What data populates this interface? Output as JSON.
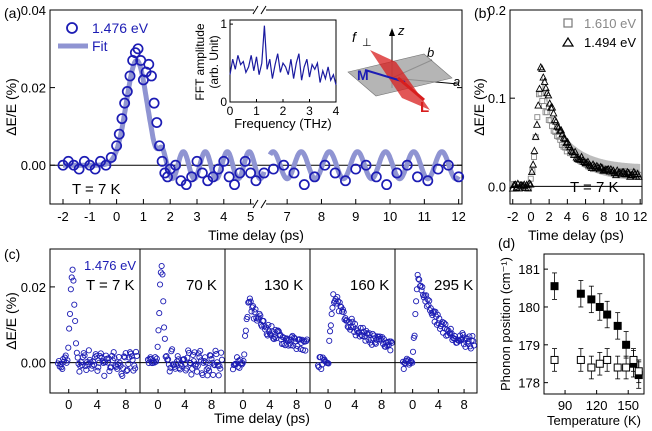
{
  "colors": {
    "data_blue": "#1c1cb4",
    "fit": "#8f94d2",
    "gray_fill": "#9a9a9a",
    "inset_line": "#1a1aa0",
    "red": "#d81e1e",
    "dark": "#000000"
  },
  "chart_data": [
    {
      "panel": "(a)",
      "type": "scatter",
      "ylabel": "ΔE/E (%)",
      "xlabel": "Time delay (ps)",
      "xticks": [
        -2,
        -1,
        0,
        1,
        2,
        3,
        4,
        5,
        7,
        8,
        9,
        10,
        11,
        12
      ],
      "yticks": [
        "0.00",
        "0.02",
        "0.04"
      ],
      "axis_break": true,
      "annotation": "T = 7 K",
      "legend": [
        {
          "name": "1.476 eV",
          "marker": "open-circle"
        },
        {
          "name": "Fit",
          "marker": "line"
        }
      ],
      "series": [
        {
          "name": "1.476 eV",
          "points": [
            [
              -2,
              0.0
            ],
            [
              -1.8,
              0.001
            ],
            [
              -1.6,
              0.0
            ],
            [
              -1.4,
              -0.001
            ],
            [
              -1.2,
              0.001
            ],
            [
              -1.0,
              0.0
            ],
            [
              -0.8,
              -0.001
            ],
            [
              -0.6,
              0.001
            ],
            [
              -0.4,
              0.0
            ],
            [
              -0.2,
              0.002
            ],
            [
              0.0,
              0.005
            ],
            [
              0.1,
              0.008
            ],
            [
              0.2,
              0.012
            ],
            [
              0.3,
              0.016
            ],
            [
              0.4,
              0.019
            ],
            [
              0.5,
              0.023
            ],
            [
              0.6,
              0.027
            ],
            [
              0.7,
              0.029
            ],
            [
              0.8,
              0.03
            ],
            [
              0.9,
              0.027
            ],
            [
              1.0,
              0.022
            ],
            [
              1.1,
              0.024
            ],
            [
              1.2,
              0.026
            ],
            [
              1.3,
              0.023
            ],
            [
              1.4,
              0.016
            ],
            [
              1.5,
              0.011
            ],
            [
              1.6,
              0.005
            ],
            [
              1.7,
              0.001
            ],
            [
              1.8,
              -0.002
            ],
            [
              1.9,
              -0.003
            ],
            [
              2.0,
              -0.001
            ],
            [
              2.2,
              0.0
            ],
            [
              2.4,
              -0.004
            ],
            [
              2.6,
              -0.005
            ],
            [
              2.8,
              -0.003
            ],
            [
              3.0,
              0.001
            ],
            [
              3.2,
              -0.002
            ],
            [
              3.4,
              -0.004
            ],
            [
              3.6,
              -0.003
            ],
            [
              3.8,
              -0.001
            ],
            [
              4.0,
              0.001
            ],
            [
              4.2,
              -0.003
            ],
            [
              4.4,
              -0.005
            ],
            [
              4.6,
              -0.002
            ],
            [
              4.8,
              0.001
            ],
            [
              5.0,
              -0.002
            ],
            [
              5.2,
              -0.004
            ],
            [
              5.5,
              -0.002
            ],
            [
              5.8,
              0.0
            ],
            [
              6.0,
              -0.003
            ],
            [
              6.3,
              -0.004
            ],
            [
              6.6,
              -0.001
            ],
            [
              6.9,
              0.0
            ],
            [
              7.2,
              -0.002
            ],
            [
              7.5,
              -0.005
            ],
            [
              7.8,
              -0.003
            ],
            [
              8.1,
              0.0
            ],
            [
              8.4,
              -0.002
            ],
            [
              8.7,
              -0.004
            ],
            [
              9.0,
              -0.001
            ],
            [
              9.3,
              0.0
            ],
            [
              9.6,
              -0.003
            ],
            [
              9.9,
              -0.005
            ],
            [
              10.2,
              -0.002
            ],
            [
              10.5,
              0.0
            ],
            [
              10.8,
              -0.003
            ],
            [
              11.1,
              -0.004
            ],
            [
              11.4,
              -0.001
            ],
            [
              11.7,
              0.0
            ],
            [
              12.0,
              -0.003
            ]
          ]
        },
        {
          "name": "Fit",
          "function": "gaussian peak 0.027 at 0.75 ps, sigma 0.38 ps, plus damped oscillation amplitude 0.0035, period 0.82 ps, after 1.6 ps"
        }
      ],
      "inset": {
        "type": "line",
        "ylabel_lines": [
          "FFT amplitude",
          "(arb. Unit)"
        ],
        "xlabel": "Frequency (THz)",
        "xticks": [
          0,
          1,
          2,
          3,
          4
        ],
        "yticks": [
          0,
          1
        ],
        "peak_frequency_thz": 1.2,
        "values": [
          0.35,
          0.55,
          0.42,
          0.6,
          0.48,
          0.52,
          0.38,
          0.45,
          0.6,
          0.4,
          0.58,
          0.35,
          0.5,
          0.98,
          0.42,
          0.55,
          0.3,
          0.48,
          0.62,
          0.38,
          0.5,
          0.45,
          0.35,
          0.55,
          0.3,
          0.5,
          0.62,
          0.28,
          0.45,
          0.55,
          0.32,
          0.48,
          0.42,
          0.5,
          0.25,
          0.4,
          0.3,
          0.45,
          0.28,
          0.35,
          0.22
        ]
      },
      "crystal_labels": {
        "f_perp": "f",
        "f_perp_sub": "⊥",
        "z": "z",
        "b": "b",
        "a": "a",
        "M": "M",
        "L": "L"
      }
    },
    {
      "panel": "(b)",
      "type": "scatter",
      "ylabel": "ΔE/E (%)",
      "xlabel": "Time delay (ps)",
      "xticks": [
        -2,
        0,
        2,
        4,
        6,
        8,
        10,
        12
      ],
      "yticks": [
        "0.0",
        "0.1",
        "0.2"
      ],
      "ylim": [
        -0.02,
        0.2
      ],
      "annotation": "T = 7 K",
      "legend": [
        {
          "name": "1.610 eV",
          "marker": "open-square"
        },
        {
          "name": "1.494 eV",
          "marker": "open-triangle"
        }
      ],
      "series": [
        {
          "name": "1.610 eV",
          "marker": "square",
          "rise_ps": 0.9,
          "peak": 0.11,
          "tau_ps": 2.6,
          "offset": 0.012
        },
        {
          "name": "1.494 eV",
          "marker": "triangle",
          "rise_ps": 1.1,
          "peak": 0.14,
          "tau_ps": 2.3,
          "offset": 0.012
        }
      ]
    },
    {
      "panel": "(c)",
      "type": "scatter",
      "ylabel": "ΔE/E (%)",
      "xlabel": "Time delay (ps)",
      "yticks": [
        "0.00",
        "0.02"
      ],
      "subpanels": [
        {
          "label": "T = 7 K",
          "series_label": "1.476 eV",
          "peak": 0.024,
          "kind": "oscillating",
          "xticks": [
            0,
            4,
            8
          ]
        },
        {
          "label": "70 K",
          "peak": 0.025,
          "kind": "oscillating",
          "xticks": [
            0,
            4,
            8
          ]
        },
        {
          "label": "130 K",
          "peak": 0.016,
          "kind": "slow",
          "xticks": [
            0,
            4,
            8
          ]
        },
        {
          "label": "160 K",
          "peak": 0.018,
          "kind": "slow",
          "xticks": [
            0,
            4,
            8
          ]
        },
        {
          "label": "295 K",
          "peak": 0.023,
          "kind": "slow",
          "xticks": [
            0,
            4,
            8
          ]
        }
      ]
    },
    {
      "panel": "(d)",
      "type": "scatter",
      "ylabel": "Phonon position (cm⁻¹)",
      "xlabel": "Temperature (K)",
      "xticks": [
        90,
        120,
        150
      ],
      "yticks": [
        178,
        179,
        180,
        181
      ],
      "ylim": [
        177.7,
        181.4
      ],
      "xlim": [
        70,
        165
      ],
      "series": [
        {
          "name": "filled",
          "marker": "filled-square",
          "points": [
            [
              80,
              180.55
            ],
            [
              105,
              180.35
            ],
            [
              115,
              180.2
            ],
            [
              123,
              180.0
            ],
            [
              130,
              179.8
            ],
            [
              140,
              179.5
            ],
            [
              148,
              179.0
            ],
            [
              155,
              178.5
            ],
            [
              160,
              178.2
            ]
          ],
          "err": 0.35
        },
        {
          "name": "open",
          "marker": "open-square",
          "points": [
            [
              80,
              178.6
            ],
            [
              105,
              178.6
            ],
            [
              115,
              178.4
            ],
            [
              123,
              178.5
            ],
            [
              130,
              178.6
            ],
            [
              140,
              178.4
            ],
            [
              148,
              178.4
            ],
            [
              155,
              178.6
            ],
            [
              160,
              178.3
            ]
          ],
          "err": 0.3
        }
      ]
    }
  ]
}
